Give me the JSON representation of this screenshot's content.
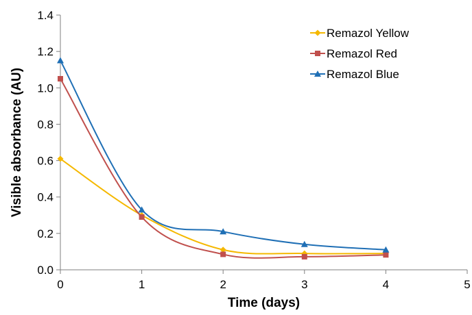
{
  "chart_data": {
    "type": "line",
    "title": "",
    "xlabel": "Time (days)",
    "ylabel": "Visible absorbance (AU)",
    "xlim": [
      0,
      5
    ],
    "ylim": [
      0,
      1.4
    ],
    "x_ticks": [
      "0",
      "1",
      "2",
      "3",
      "4",
      "5"
    ],
    "y_ticks": [
      "0.0",
      "0.2",
      "0.4",
      "0.6",
      "0.8",
      "1.0",
      "1.2",
      "1.4"
    ],
    "grid": false,
    "smoothed": true,
    "legend_position": "top-right",
    "x": [
      0,
      1,
      2,
      3,
      4
    ],
    "series": [
      {
        "name": "Remazol Yellow",
        "color": "#f5b800",
        "marker": "diamond",
        "values": [
          0.61,
          0.3,
          0.11,
          0.09,
          0.09
        ]
      },
      {
        "name": "Remazol Red",
        "color": "#c0504d",
        "marker": "square",
        "values": [
          1.05,
          0.29,
          0.085,
          0.072,
          0.082
        ]
      },
      {
        "name": "Remazol Blue",
        "color": "#1f6fb5",
        "marker": "triangle",
        "values": [
          1.15,
          0.33,
          0.21,
          0.14,
          0.11
        ]
      }
    ]
  }
}
